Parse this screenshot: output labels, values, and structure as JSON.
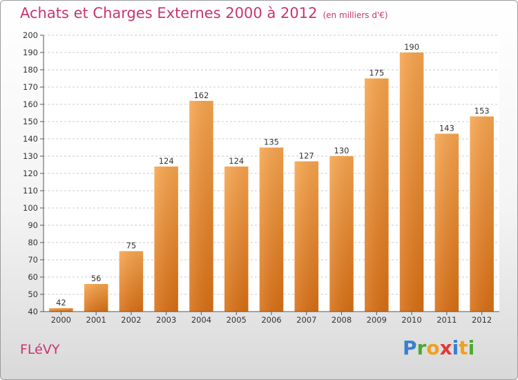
{
  "title": "Achats et Charges Externes 2000 à 2012",
  "subtitle": "(en milliers d'€)",
  "commune": "FLéVY",
  "logo": {
    "letters": [
      {
        "ch": "P",
        "color": "#3a7fd0"
      },
      {
        "ch": "r",
        "color": "#4aaa2e"
      },
      {
        "ch": "o",
        "color": "#f0a020"
      },
      {
        "ch": "x",
        "color": "#e03a3a"
      },
      {
        "ch": "i",
        "color": "#3a7fd0"
      },
      {
        "ch": "t",
        "color": "#f0a020"
      },
      {
        "ch": "i",
        "color": "#4aaa2e"
      }
    ]
  },
  "colors": {
    "bar_top": "#f7a54e",
    "bar_bottom": "#d86f14",
    "grid": "#c9c9c9",
    "axis": "#555555"
  },
  "chart_data": {
    "type": "bar",
    "categories": [
      "2000",
      "2001",
      "2002",
      "2003",
      "2004",
      "2005",
      "2006",
      "2007",
      "2008",
      "2009",
      "2010",
      "2011",
      "2012"
    ],
    "values": [
      42,
      56,
      75,
      124,
      162,
      124,
      135,
      127,
      130,
      175,
      190,
      143,
      153
    ],
    "ylim": [
      40,
      200
    ],
    "yticks": [
      40,
      50,
      60,
      70,
      80,
      90,
      100,
      110,
      120,
      130,
      140,
      150,
      160,
      170,
      180,
      190,
      200
    ],
    "grid": "dashed-horizontal",
    "value_labels": true
  }
}
